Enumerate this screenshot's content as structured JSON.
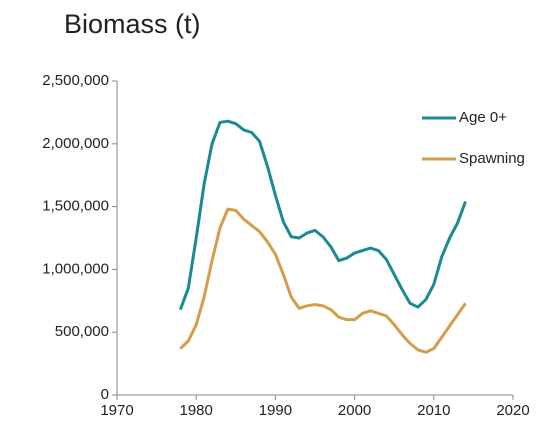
{
  "chart_data": {
    "type": "line",
    "title": "Biomass (t)",
    "x": [
      1978,
      1979,
      1980,
      1981,
      1982,
      1983,
      1984,
      1985,
      1986,
      1987,
      1988,
      1989,
      1990,
      1991,
      1992,
      1993,
      1994,
      1995,
      1996,
      1997,
      1998,
      1999,
      2000,
      2001,
      2002,
      2003,
      2004,
      2005,
      2006,
      2007,
      2008,
      2009,
      2010,
      2011,
      2012,
      2013,
      2014
    ],
    "series": [
      {
        "name": "Age 0+",
        "color": "#1b8a94",
        "values": [
          680000,
          850000,
          1250000,
          1680000,
          2000000,
          2170000,
          2180000,
          2160000,
          2110000,
          2090000,
          2020000,
          1820000,
          1590000,
          1380000,
          1260000,
          1250000,
          1290000,
          1310000,
          1260000,
          1180000,
          1070000,
          1090000,
          1130000,
          1150000,
          1170000,
          1150000,
          1080000,
          960000,
          840000,
          730000,
          700000,
          760000,
          880000,
          1100000,
          1250000,
          1370000,
          1540000
        ]
      },
      {
        "name": "Spawning",
        "color": "#d49d4b",
        "values": [
          370000,
          430000,
          560000,
          780000,
          1070000,
          1330000,
          1480000,
          1470000,
          1400000,
          1350000,
          1300000,
          1220000,
          1120000,
          960000,
          780000,
          690000,
          710000,
          720000,
          710000,
          680000,
          620000,
          600000,
          600000,
          650000,
          670000,
          650000,
          630000,
          560000,
          480000,
          410000,
          360000,
          340000,
          370000,
          460000,
          550000,
          640000,
          730000
        ]
      }
    ],
    "xlim": [
      1970,
      2020
    ],
    "xticks": [
      1970,
      1980,
      1990,
      2000,
      2010,
      2020
    ],
    "ylim": [
      0,
      2500000
    ],
    "yticks": [
      0,
      {
        "value": 500000,
        "label": "500,000"
      },
      {
        "value": 1000000,
        "label": "1,000,000"
      },
      {
        "value": 1500000,
        "label": "1,500,000"
      },
      {
        "value": 2000000,
        "label": "2,000,000"
      },
      {
        "value": 2500000,
        "label": "2,500,000"
      }
    ],
    "grid": false,
    "legend": "upper right"
  }
}
